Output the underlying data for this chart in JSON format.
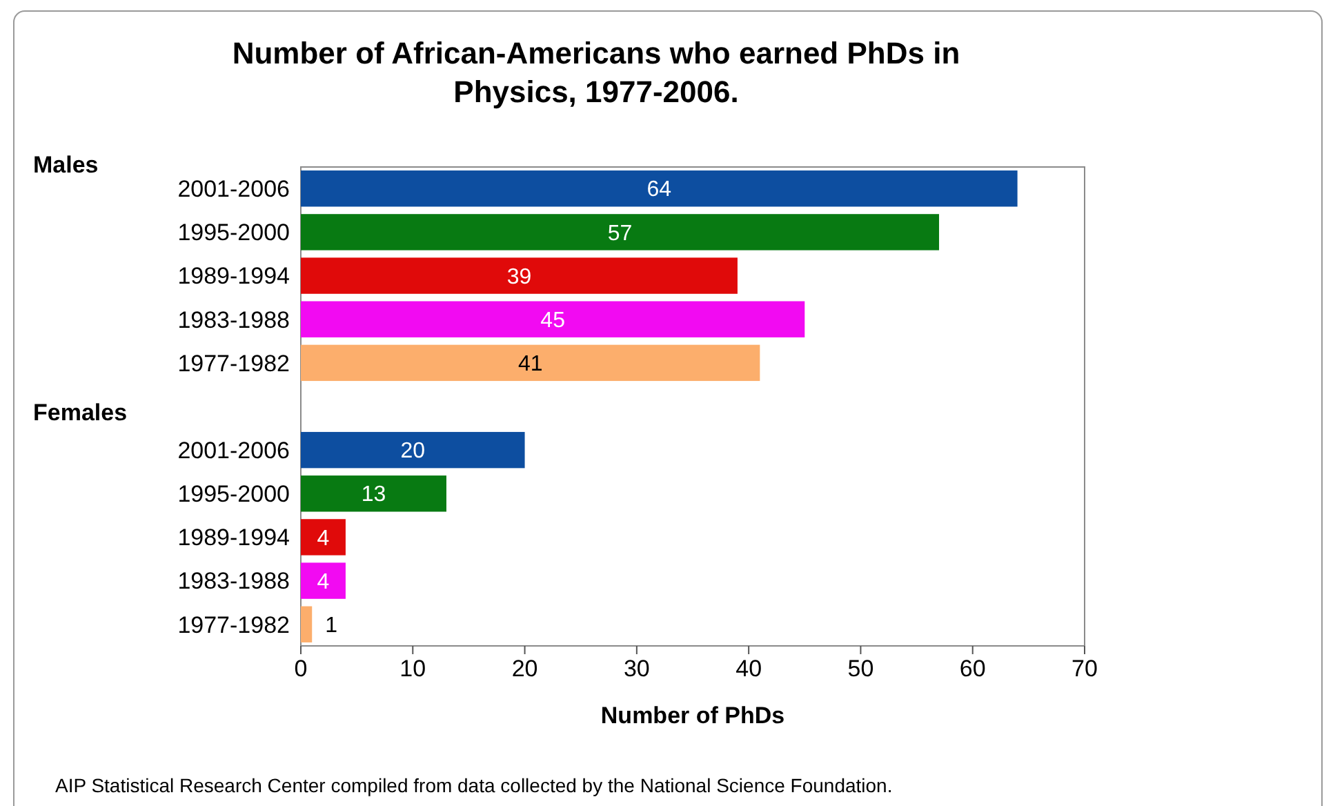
{
  "chart_data": {
    "type": "bar",
    "orientation": "horizontal",
    "title": "Number of African-Americans who earned PhDs in Physics, 1977-2006.",
    "xlabel": "Number of PhDs",
    "categories": [
      "2001-2006",
      "1995-2000",
      "1989-1994",
      "1983-1988",
      "1977-1982",
      null,
      "2001-2006",
      "1995-2000",
      "1989-1994",
      "1983-1988",
      "1977-1982"
    ],
    "values": [
      64,
      57,
      39,
      45,
      41,
      null,
      20,
      13,
      4,
      4,
      1
    ],
    "colors": [
      "#0d4ea0",
      "#087a12",
      "#e00a0a",
      "#f20af2",
      "#fcae6c",
      null,
      "#0d4ea0",
      "#087a12",
      "#e00a0a",
      "#f20af2",
      "#fcae6c"
    ],
    "xlim": [
      0,
      70
    ],
    "xticks": [
      0,
      10,
      20,
      30,
      40,
      50,
      60,
      70
    ],
    "data_labels": true,
    "annotations": [
      "Males",
      "Females",
      "AIP Statistical Research Center compiled from data collected by the National Science Foundation."
    ]
  }
}
